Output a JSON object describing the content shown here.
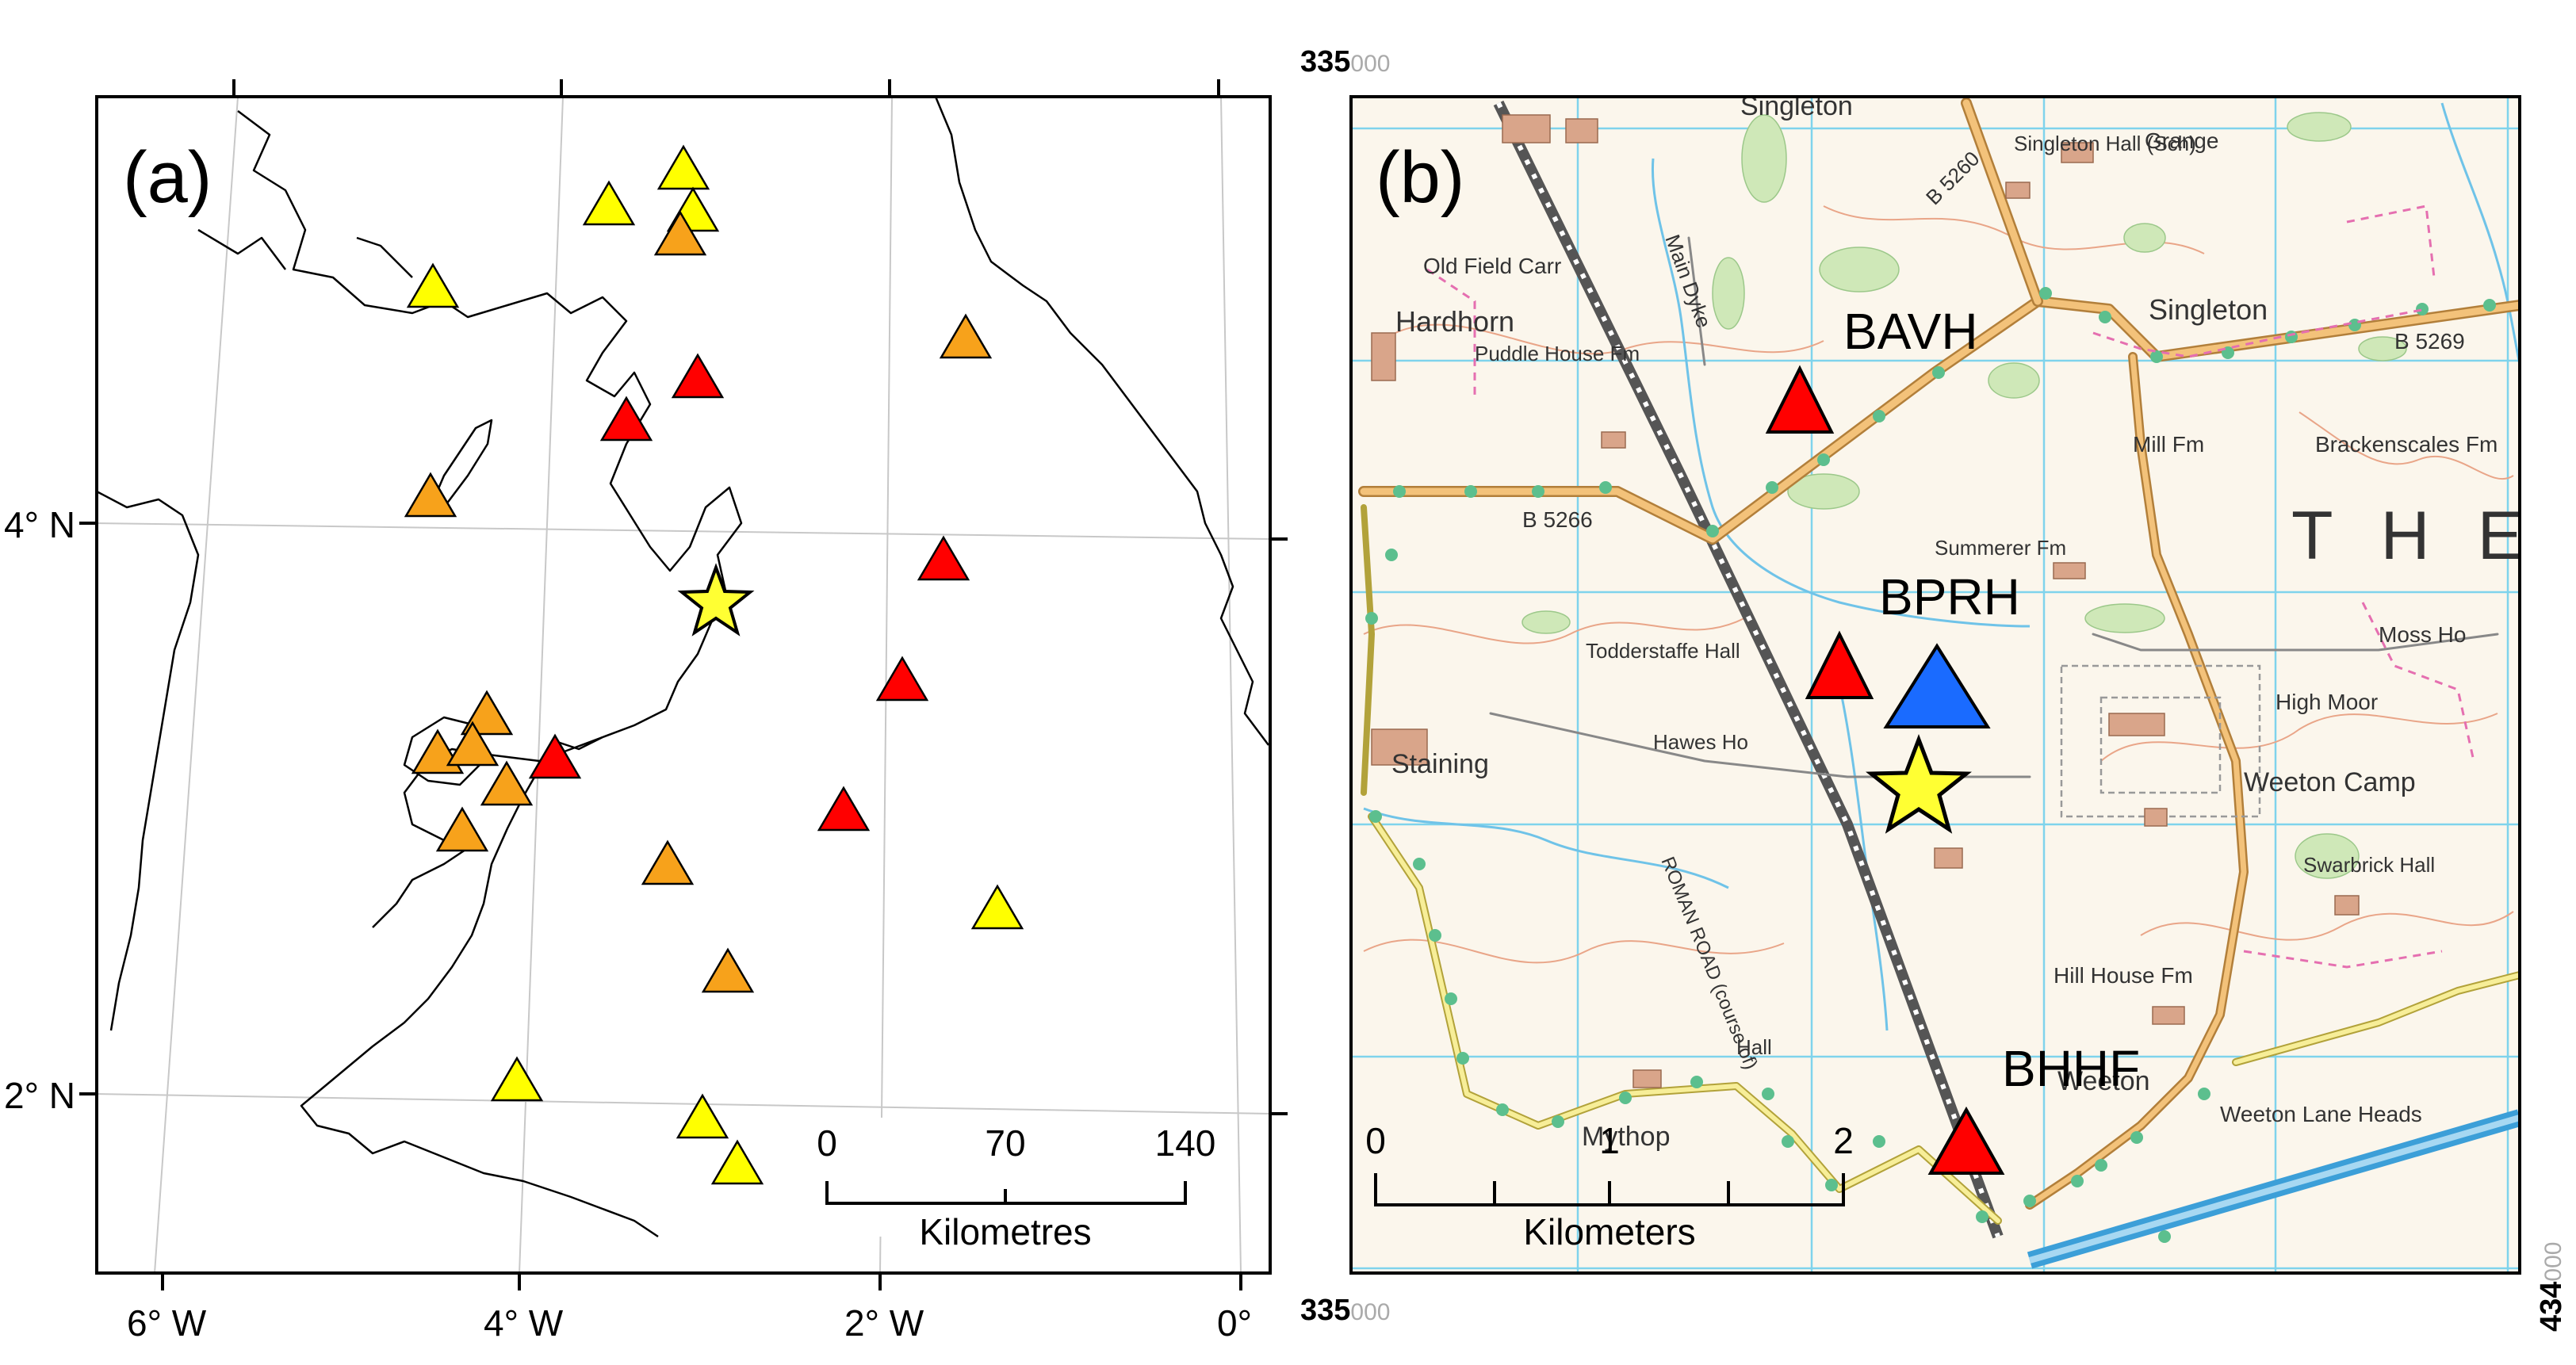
{
  "panel_a": {
    "label": "(a)",
    "lat_labels": [
      "4° N",
      "2° N"
    ],
    "lon_labels": [
      "6° W",
      "4° W",
      "2° W",
      "0°"
    ],
    "scale": {
      "ticks": [
        "0",
        "70",
        "140"
      ],
      "unit": "Kilometres"
    },
    "colors": {
      "red": "#ff0000",
      "orange": "#f7a21b",
      "yellow": "#ffff00",
      "star": "#ffff33"
    }
  },
  "panel_b": {
    "label": "(b)",
    "stations": [
      {
        "name": "BAVH",
        "color": "#ff0000"
      },
      {
        "name": "BPRH",
        "color": "#1a6bff"
      },
      {
        "name": "BHHF",
        "color": "#ff0000"
      }
    ],
    "grid_ref": {
      "top_left": "335000",
      "bottom_left": "335000",
      "right": "434000"
    },
    "scale": {
      "ticks": [
        "0",
        "1",
        "2"
      ],
      "unit": "Kilometers"
    },
    "place_names": [
      "Singleton",
      "Singleton Hall (Sch)",
      "Grange",
      "Old Field Carr",
      "Hardhorn",
      "Puddle House Fm",
      "Singleton",
      "Mill Fm",
      "Brackenscales Fm",
      "Summerer Fm",
      "Todderstaffe Hall",
      "Moss Ho",
      "High Moor",
      "Weeton Camp",
      "Staining",
      "Hawes Ho",
      "Swarbrick Hall",
      "Hill House Fm",
      "Weeton",
      "Weeton Lane Heads",
      "Mythop",
      "Hall",
      "Main Dyke",
      "ROMAN ROAD (course of)",
      "THE"
    ],
    "road_labels": [
      "B 5260",
      "B 5269",
      "B 5266"
    ]
  }
}
